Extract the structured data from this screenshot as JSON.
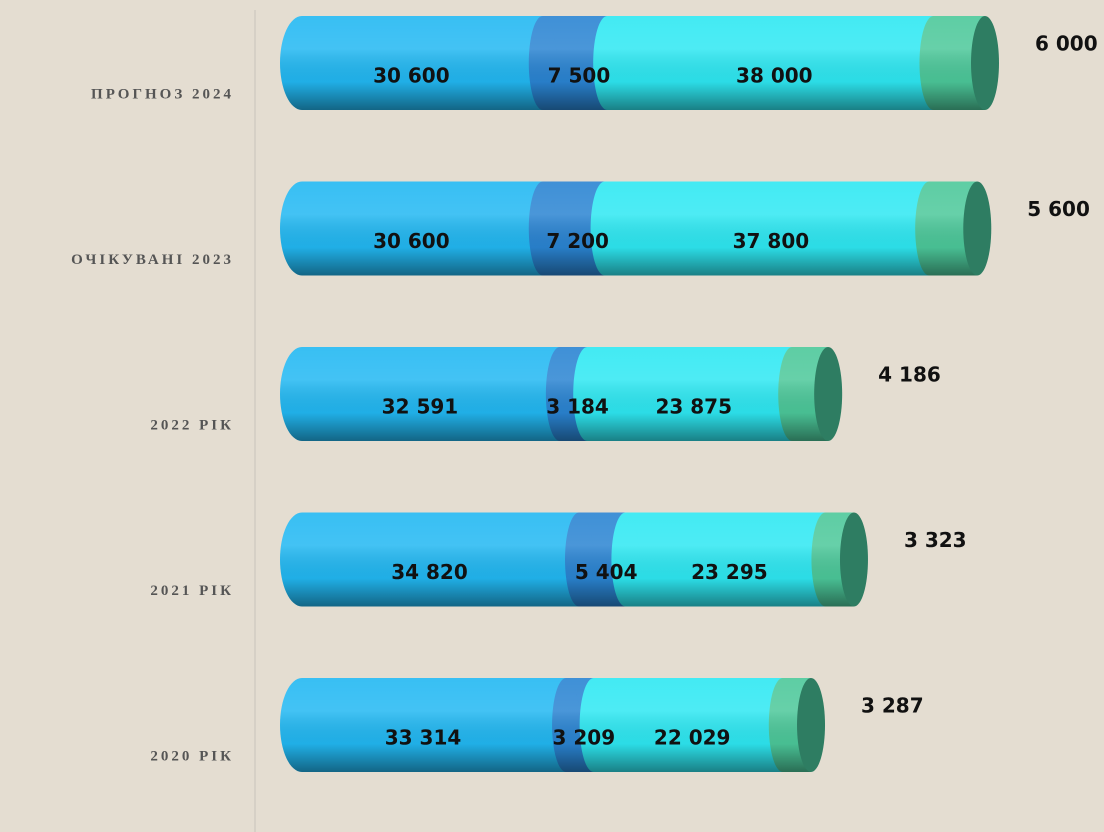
{
  "chart_data": {
    "type": "stacked-bar-horizontal",
    "categories": [
      "ПРОГНОЗ 2024",
      "ОЧІКУВАНІ 2023",
      "2022 РІК",
      "2021 РІК",
      "2020 РІК"
    ],
    "series": [
      {
        "color": "#22b8f2",
        "values": [
          30600,
          30600,
          32591,
          34820,
          33314
        ],
        "value_labels": [
          "30 600",
          "30 600",
          "32 591",
          "34 820",
          "33 314"
        ]
      },
      {
        "color": "#2a84d2",
        "values": [
          7500,
          7200,
          3184,
          5404,
          3209
        ],
        "value_labels": [
          "7 500",
          "7 200",
          "3 184",
          "5 404",
          "3 209"
        ]
      },
      {
        "color": "#2ee8f2",
        "values": [
          38000,
          37800,
          23875,
          23295,
          22029
        ],
        "value_labels": [
          "38 000",
          "37 800",
          "23 875",
          "23 295",
          "22 029"
        ]
      },
      {
        "color": "#4cc89a",
        "values": [
          6000,
          5600,
          4186,
          3323,
          3287
        ],
        "value_labels": [
          "6 000",
          "5 600",
          "4 186",
          "3 323",
          "3 287"
        ]
      }
    ]
  }
}
